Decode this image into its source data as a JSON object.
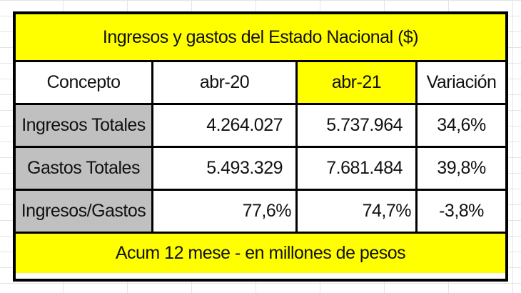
{
  "table": {
    "title": "Ingresos y gastos del Estado Nacional ($)",
    "headers": [
      "Concepto",
      "abr-20",
      "abr-21",
      "Variación"
    ],
    "rows": [
      {
        "concepto": "Ingresos Totales",
        "abr20": "4.264.027",
        "abr21": "5.737.964",
        "variacion": "34,6%"
      },
      {
        "concepto": "Gastos Totales",
        "abr20": "5.493.329",
        "abr21": "7.681.484",
        "variacion": "39,8%"
      },
      {
        "concepto": "Ingresos/Gastos",
        "abr20": "77,6%",
        "abr21": "74,7%",
        "variacion": "-3,8%"
      }
    ],
    "footer": "Acum 12 mese - en millones de pesos"
  },
  "colors": {
    "highlight": "#ffff00",
    "label_fill": "#c0c0c0",
    "border": "#000000"
  }
}
